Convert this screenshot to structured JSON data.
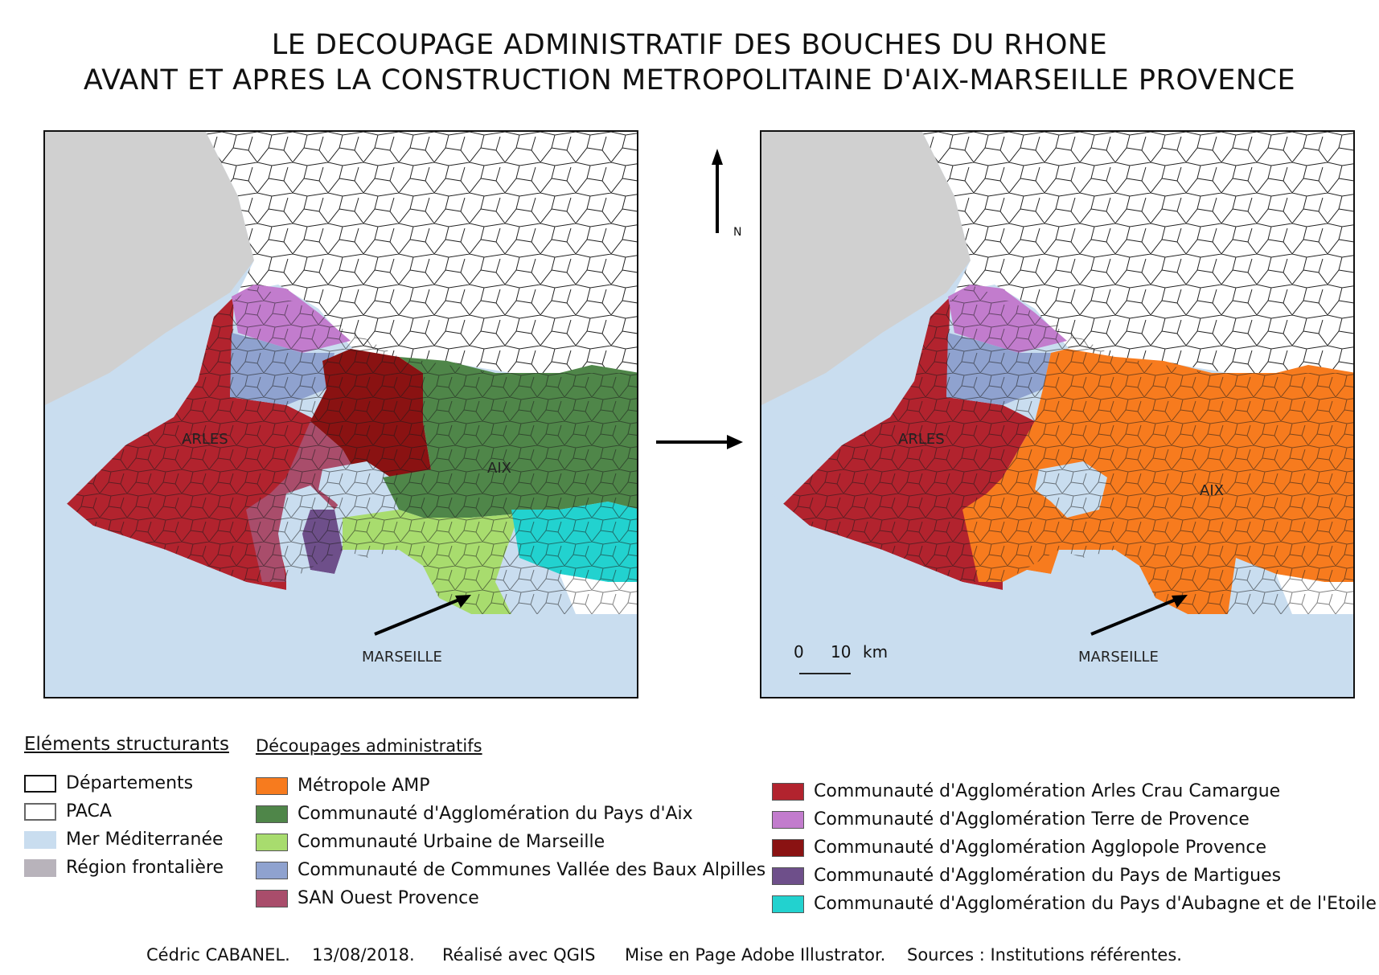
{
  "title_line1": "LE DECOUPAGE ADMINISTRATIF DES BOUCHES DU RHONE",
  "title_line2": "AVANT ET APRES LA CONSTRUCTION METROPOLITAINE D'AIX-MARSEILLE PROVENCE",
  "map_before": {
    "labels": {
      "arles": "ARLES",
      "aix": "AIX",
      "marseille": "MARSEILLE"
    }
  },
  "map_after": {
    "labels": {
      "arles": "ARLES",
      "aix": "AIX",
      "marseille": "MARSEILLE"
    },
    "scale": {
      "zero": "0",
      "ten": "10",
      "unit": "km"
    }
  },
  "north_label": "N",
  "legend": {
    "structuring_title": "Eléments structurants",
    "structuring": [
      {
        "label": "Départements",
        "fill": "#ffffff",
        "border": "#111111"
      },
      {
        "label": "PACA",
        "fill": "#ffffff",
        "border": "#666666"
      },
      {
        "label": "Mer Méditerranée",
        "fill": "#c9ddef",
        "border": "none"
      },
      {
        "label": "Région frontalière",
        "fill": "#b8b3bb",
        "border": "none"
      }
    ],
    "admin_title": "Découpages administratifs",
    "admin_left": [
      {
        "label": "Métropole AMP",
        "color": "#f77b1e"
      },
      {
        "label": "Communauté d'Agglomération du Pays d'Aix",
        "color": "#4f8649"
      },
      {
        "label": "Communauté Urbaine de Marseille",
        "color": "#a8dc6e"
      },
      {
        "label": "Communauté de Communes Vallée des Baux Alpilles",
        "color": "#8fa2cf"
      },
      {
        "label": "SAN Ouest Provence",
        "color": "#a94d6b"
      }
    ],
    "admin_right": [
      {
        "label": "Communauté d'Agglomération Arles Crau Camargue",
        "color": "#b2232e"
      },
      {
        "label": "Communauté d'Agglomération Terre de Provence",
        "color": "#c27ccd"
      },
      {
        "label": "Communauté d'Agglomération Agglopole Provence",
        "color": "#8a1212"
      },
      {
        "label": "Communauté d'Agglomération du Pays de Martigues",
        "color": "#6e4f8a"
      },
      {
        "label": "Communauté d'Agglomération du Pays d'Aubagne et de l'Etoile",
        "color": "#22d2cf"
      }
    ]
  },
  "footer": {
    "author": "Cédric CABANEL.",
    "date": "13/08/2018.",
    "software": "Réalisé avec QGIS",
    "layout": "Mise en Page Adobe Illustrator.",
    "sources": "Sources : Institutions référentes."
  }
}
